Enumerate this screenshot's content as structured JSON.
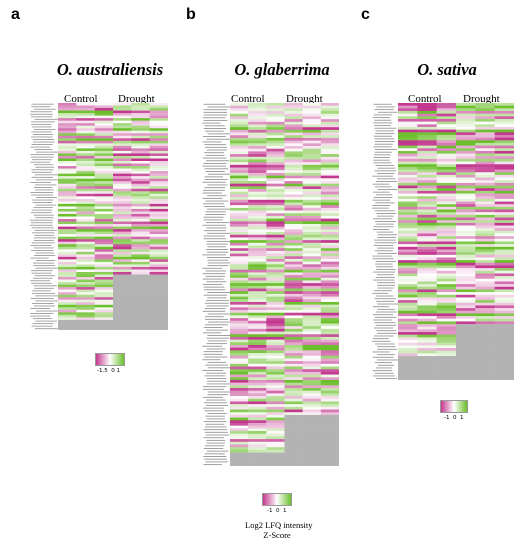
{
  "panels": [
    {
      "letter": "a",
      "species": "O. australiensis",
      "groups": [
        "Control",
        "Drought"
      ],
      "n_genes": 90,
      "missing_drought_rows": 18,
      "missing_all_rows": 4,
      "seed": 11
    },
    {
      "letter": "b",
      "species": "O. glaberrima",
      "groups": [
        "Control",
        "Drought"
      ],
      "n_genes": 135,
      "missing_drought_rows": 14,
      "missing_all_rows": 5,
      "seed": 23
    },
    {
      "letter": "c",
      "species": "O. sativa",
      "groups": [
        "Control",
        "Drought"
      ],
      "n_genes": 104,
      "missing_drought_rows": 12,
      "missing_all_rows": 9,
      "seed": 37
    }
  ],
  "legend_a": {
    "ticks": [
      "-1.5",
      "0",
      "1"
    ]
  },
  "legend_b": {
    "ticks": [
      "-1",
      "0",
      "1"
    ],
    "title": "Log2 LFQ intensity",
    "subtitle": "Z-Score"
  },
  "legend_c": {
    "ticks": [
      "-1",
      "0",
      "1"
    ]
  },
  "colors": {
    "low": "#c2388f",
    "mid": "#ffffff",
    "high": "#6cbf2c",
    "missing": "#b3b3b3"
  },
  "chart_data": [
    {
      "type": "heatmap",
      "title": "O. australiensis",
      "columns": [
        "Control",
        "Drought"
      ],
      "replicates_per_group": 3,
      "rows": 90,
      "value_scale": "Z-Score",
      "range": [
        -1.5,
        1
      ]
    },
    {
      "type": "heatmap",
      "title": "O. glaberrima",
      "columns": [
        "Control",
        "Drought"
      ],
      "replicates_per_group": 3,
      "rows": 135,
      "value_scale": "Log2 LFQ intensity Z-Score",
      "range": [
        -1,
        1
      ]
    },
    {
      "type": "heatmap",
      "title": "O. sativa",
      "columns": [
        "Control",
        "Drought"
      ],
      "replicates_per_group": 3,
      "rows": 104,
      "value_scale": "Z-Score",
      "range": [
        -1,
        1
      ]
    }
  ]
}
